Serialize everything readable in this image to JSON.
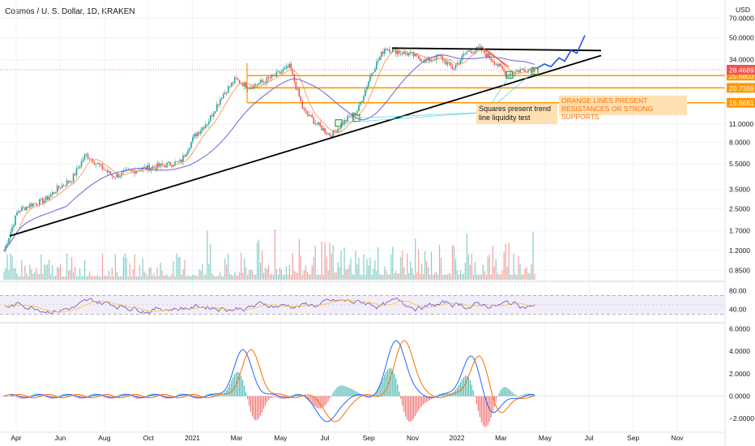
{
  "title": "Cosmos / U. S. Dollar, 1D, KRAKEN",
  "currency": "USD",
  "colors": {
    "orange": "#ff9800",
    "price_up": "#26a69a",
    "price_down": "#ef5350",
    "ma_fast": "#f7a35c",
    "ma_slow": "#6d62d6",
    "trendline": "#000000",
    "forecast": "#1e53e5",
    "macd": "#2962ff",
    "signal": "#ff6d00",
    "rsi": "#7e57c2",
    "price_label_orange": "#ff9800",
    "price_label_red": "#ef5350"
  },
  "annotations": {
    "orange_lines_note": "ORANGE LINES PRESENT RESISTANCES OR STRONG SUPPORTS",
    "squares_note": "Squares present trend line liquidity test"
  },
  "chart_data": [
    {
      "type": "candlestick",
      "panel": "price",
      "scale": "log",
      "x_ticks": [
        "Apr",
        "Jun",
        "Aug",
        "Oct",
        "2021",
        "Mar",
        "May",
        "Jul",
        "Sep",
        "Nov",
        "2022",
        "Mar",
        "May",
        "Jul",
        "Sep",
        "Nov"
      ],
      "y_ticks": [
        0.85,
        1.2,
        1.7,
        2.5,
        3.5,
        5.5,
        8.0,
        11.0,
        15.9681,
        20.7369,
        25.6803,
        28.4689,
        34.0,
        50.0,
        70.0
      ],
      "price_path": [
        1.2,
        2.4,
        2.7,
        2.9,
        3.6,
        4.2,
        6.5,
        5.3,
        4.4,
        4.7,
        5.0,
        5.2,
        5.4,
        5.7,
        9.0,
        11.5,
        18.0,
        24.0,
        21.0,
        23.0,
        26.0,
        30.0,
        14.0,
        11.0,
        9.0,
        11.5,
        14.0,
        27.0,
        42.0,
        39.0,
        37.0,
        33.0,
        36.0,
        29.0,
        39.0,
        41.0,
        33.0,
        26.0,
        28.5,
        29.0
      ],
      "last_price": 28.4689,
      "horizontal_levels": [
        25.6803,
        20.7369,
        15.9681
      ],
      "resistance_top": 41.0,
      "trendline": {
        "from": 1.55,
        "to": 36.5
      },
      "forecast_target": 52.0
    },
    {
      "type": "line",
      "panel": "rsi",
      "y_ticks": [
        40.0,
        80.0
      ],
      "upper_band": 70,
      "lower_band": 30
    },
    {
      "type": "bar",
      "panel": "macd",
      "y_ticks": [
        -2.0,
        0.0,
        2.0,
        4.0,
        6.0
      ],
      "macd_peaks": [
        {
          "x": 0.45,
          "value": 4.0
        },
        {
          "x": 0.61,
          "value": -2.4
        },
        {
          "x": 0.74,
          "value": 5.0
        },
        {
          "x": 0.88,
          "value": 3.6
        },
        {
          "x": 0.92,
          "value": -1.6
        }
      ]
    }
  ]
}
